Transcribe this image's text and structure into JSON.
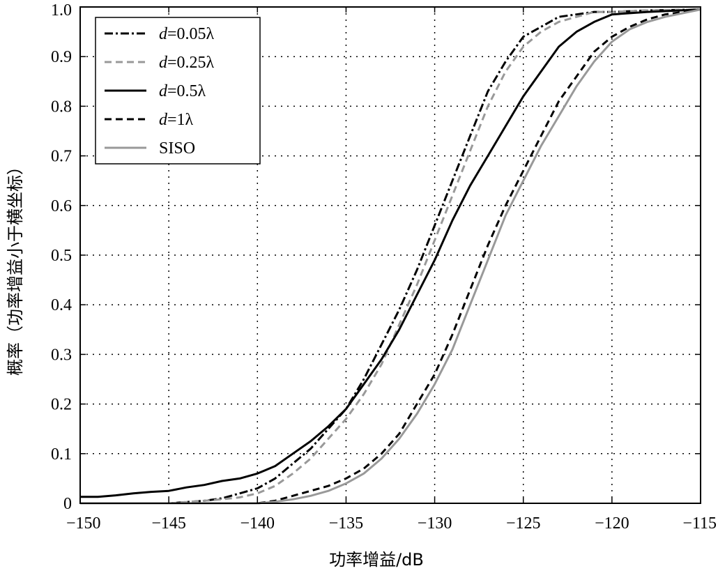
{
  "chart_data": {
    "type": "line",
    "title": "",
    "xlabel": "功率增益/dB",
    "ylabel": "概率（功率增益小于横坐标）",
    "xlim": [
      -150,
      -115
    ],
    "ylim": [
      0,
      1
    ],
    "xticks": [
      -150,
      -145,
      -140,
      -135,
      -130,
      -125,
      -120,
      -115
    ],
    "xtick_labels": [
      "−150",
      "−145",
      "−140",
      "−135",
      "−130",
      "−125",
      "−120",
      "−115"
    ],
    "yticks": [
      0,
      0.1,
      0.2,
      0.3,
      0.4,
      0.5,
      0.6,
      0.7,
      0.8,
      0.9,
      1.0
    ],
    "ytick_labels": [
      "0",
      "0.1",
      "0.2",
      "0.3",
      "0.4",
      "0.5",
      "0.6",
      "0.7",
      "0.8",
      "0.9",
      "1.0"
    ],
    "grid": true,
    "legend_position": "top-left",
    "series": [
      {
        "name": "d=0.05λ",
        "legend_var": "d",
        "legend_rest": "=0.05λ",
        "color": "#000000",
        "dash": "12,4,3,4",
        "x": [
          -150,
          -145,
          -143,
          -142,
          -141,
          -140,
          -139,
          -138,
          -137,
          -136,
          -135,
          -134,
          -133,
          -132,
          -131,
          -130,
          -129,
          -128,
          -127,
          -126,
          -125,
          -124,
          -123,
          -122,
          -121,
          -120,
          -118,
          -115
        ],
        "y": [
          0,
          0,
          0.005,
          0.01,
          0.02,
          0.03,
          0.05,
          0.08,
          0.11,
          0.15,
          0.19,
          0.25,
          0.32,
          0.39,
          0.47,
          0.56,
          0.65,
          0.74,
          0.83,
          0.89,
          0.94,
          0.96,
          0.98,
          0.985,
          0.99,
          0.99,
          0.993,
          0.995
        ]
      },
      {
        "name": "d=0.25λ",
        "legend_var": "d",
        "legend_rest": "=0.25λ",
        "color": "#999999",
        "dash": "10,6",
        "x": [
          -150,
          -145,
          -143,
          -142,
          -141,
          -140,
          -139,
          -138,
          -137,
          -136,
          -135,
          -134,
          -133,
          -132,
          -131,
          -130,
          -129,
          -128,
          -127,
          -126,
          -125,
          -124,
          -123,
          -122,
          -121,
          -120,
          -118,
          -115
        ],
        "y": [
          0,
          0,
          0.005,
          0.008,
          0.012,
          0.02,
          0.035,
          0.06,
          0.09,
          0.13,
          0.17,
          0.22,
          0.28,
          0.36,
          0.44,
          0.53,
          0.62,
          0.71,
          0.8,
          0.87,
          0.92,
          0.95,
          0.97,
          0.98,
          0.99,
          0.99,
          0.993,
          0.995
        ]
      },
      {
        "name": "d=0.5λ",
        "legend_var": "d",
        "legend_rest": "=0.5λ",
        "color": "#000000",
        "dash": "",
        "x": [
          -150,
          -149,
          -148,
          -147,
          -146,
          -145,
          -144,
          -143,
          -142,
          -141,
          -140,
          -139,
          -138,
          -137,
          -136,
          -135,
          -134,
          -133,
          -132,
          -131,
          -130,
          -129,
          -128,
          -127,
          -126,
          -125,
          -124,
          -123,
          -122,
          -121,
          -120,
          -118,
          -115
        ],
        "y": [
          0.013,
          0.013,
          0.016,
          0.02,
          0.023,
          0.025,
          0.032,
          0.037,
          0.045,
          0.05,
          0.06,
          0.075,
          0.1,
          0.125,
          0.155,
          0.19,
          0.24,
          0.29,
          0.35,
          0.42,
          0.49,
          0.57,
          0.64,
          0.7,
          0.76,
          0.82,
          0.87,
          0.92,
          0.95,
          0.97,
          0.985,
          0.99,
          0.995
        ]
      },
      {
        "name": "d=1λ",
        "legend_var": "d",
        "legend_rest": "=1λ",
        "color": "#000000",
        "dash": "10,6",
        "x": [
          -150,
          -145,
          -142,
          -140,
          -139,
          -138,
          -137,
          -136,
          -135,
          -134,
          -133,
          -132,
          -131,
          -130,
          -129,
          -128,
          -127,
          -126,
          -125,
          -124,
          -123,
          -122,
          -121,
          -120,
          -119,
          -118,
          -117,
          -115
        ],
        "y": [
          0,
          0,
          0,
          0,
          0.005,
          0.015,
          0.025,
          0.035,
          0.05,
          0.07,
          0.1,
          0.14,
          0.2,
          0.26,
          0.34,
          0.43,
          0.52,
          0.6,
          0.67,
          0.74,
          0.81,
          0.86,
          0.91,
          0.94,
          0.96,
          0.975,
          0.985,
          0.995
        ]
      },
      {
        "name": "SISO",
        "legend_var": "",
        "legend_rest": "SISO",
        "color": "#999999",
        "dash": "",
        "x": [
          -150,
          -145,
          -142,
          -140,
          -139,
          -138,
          -137,
          -136,
          -135,
          -134,
          -133,
          -132,
          -131,
          -130,
          -129,
          -128,
          -127,
          -126,
          -125,
          -124,
          -123,
          -122,
          -121,
          -120,
          -119,
          -118,
          -117,
          -115
        ],
        "y": [
          0,
          0,
          0,
          0,
          0.003,
          0.008,
          0.015,
          0.025,
          0.04,
          0.06,
          0.09,
          0.13,
          0.18,
          0.24,
          0.31,
          0.4,
          0.49,
          0.58,
          0.65,
          0.72,
          0.78,
          0.84,
          0.89,
          0.93,
          0.955,
          0.97,
          0.98,
          0.995
        ]
      }
    ]
  }
}
